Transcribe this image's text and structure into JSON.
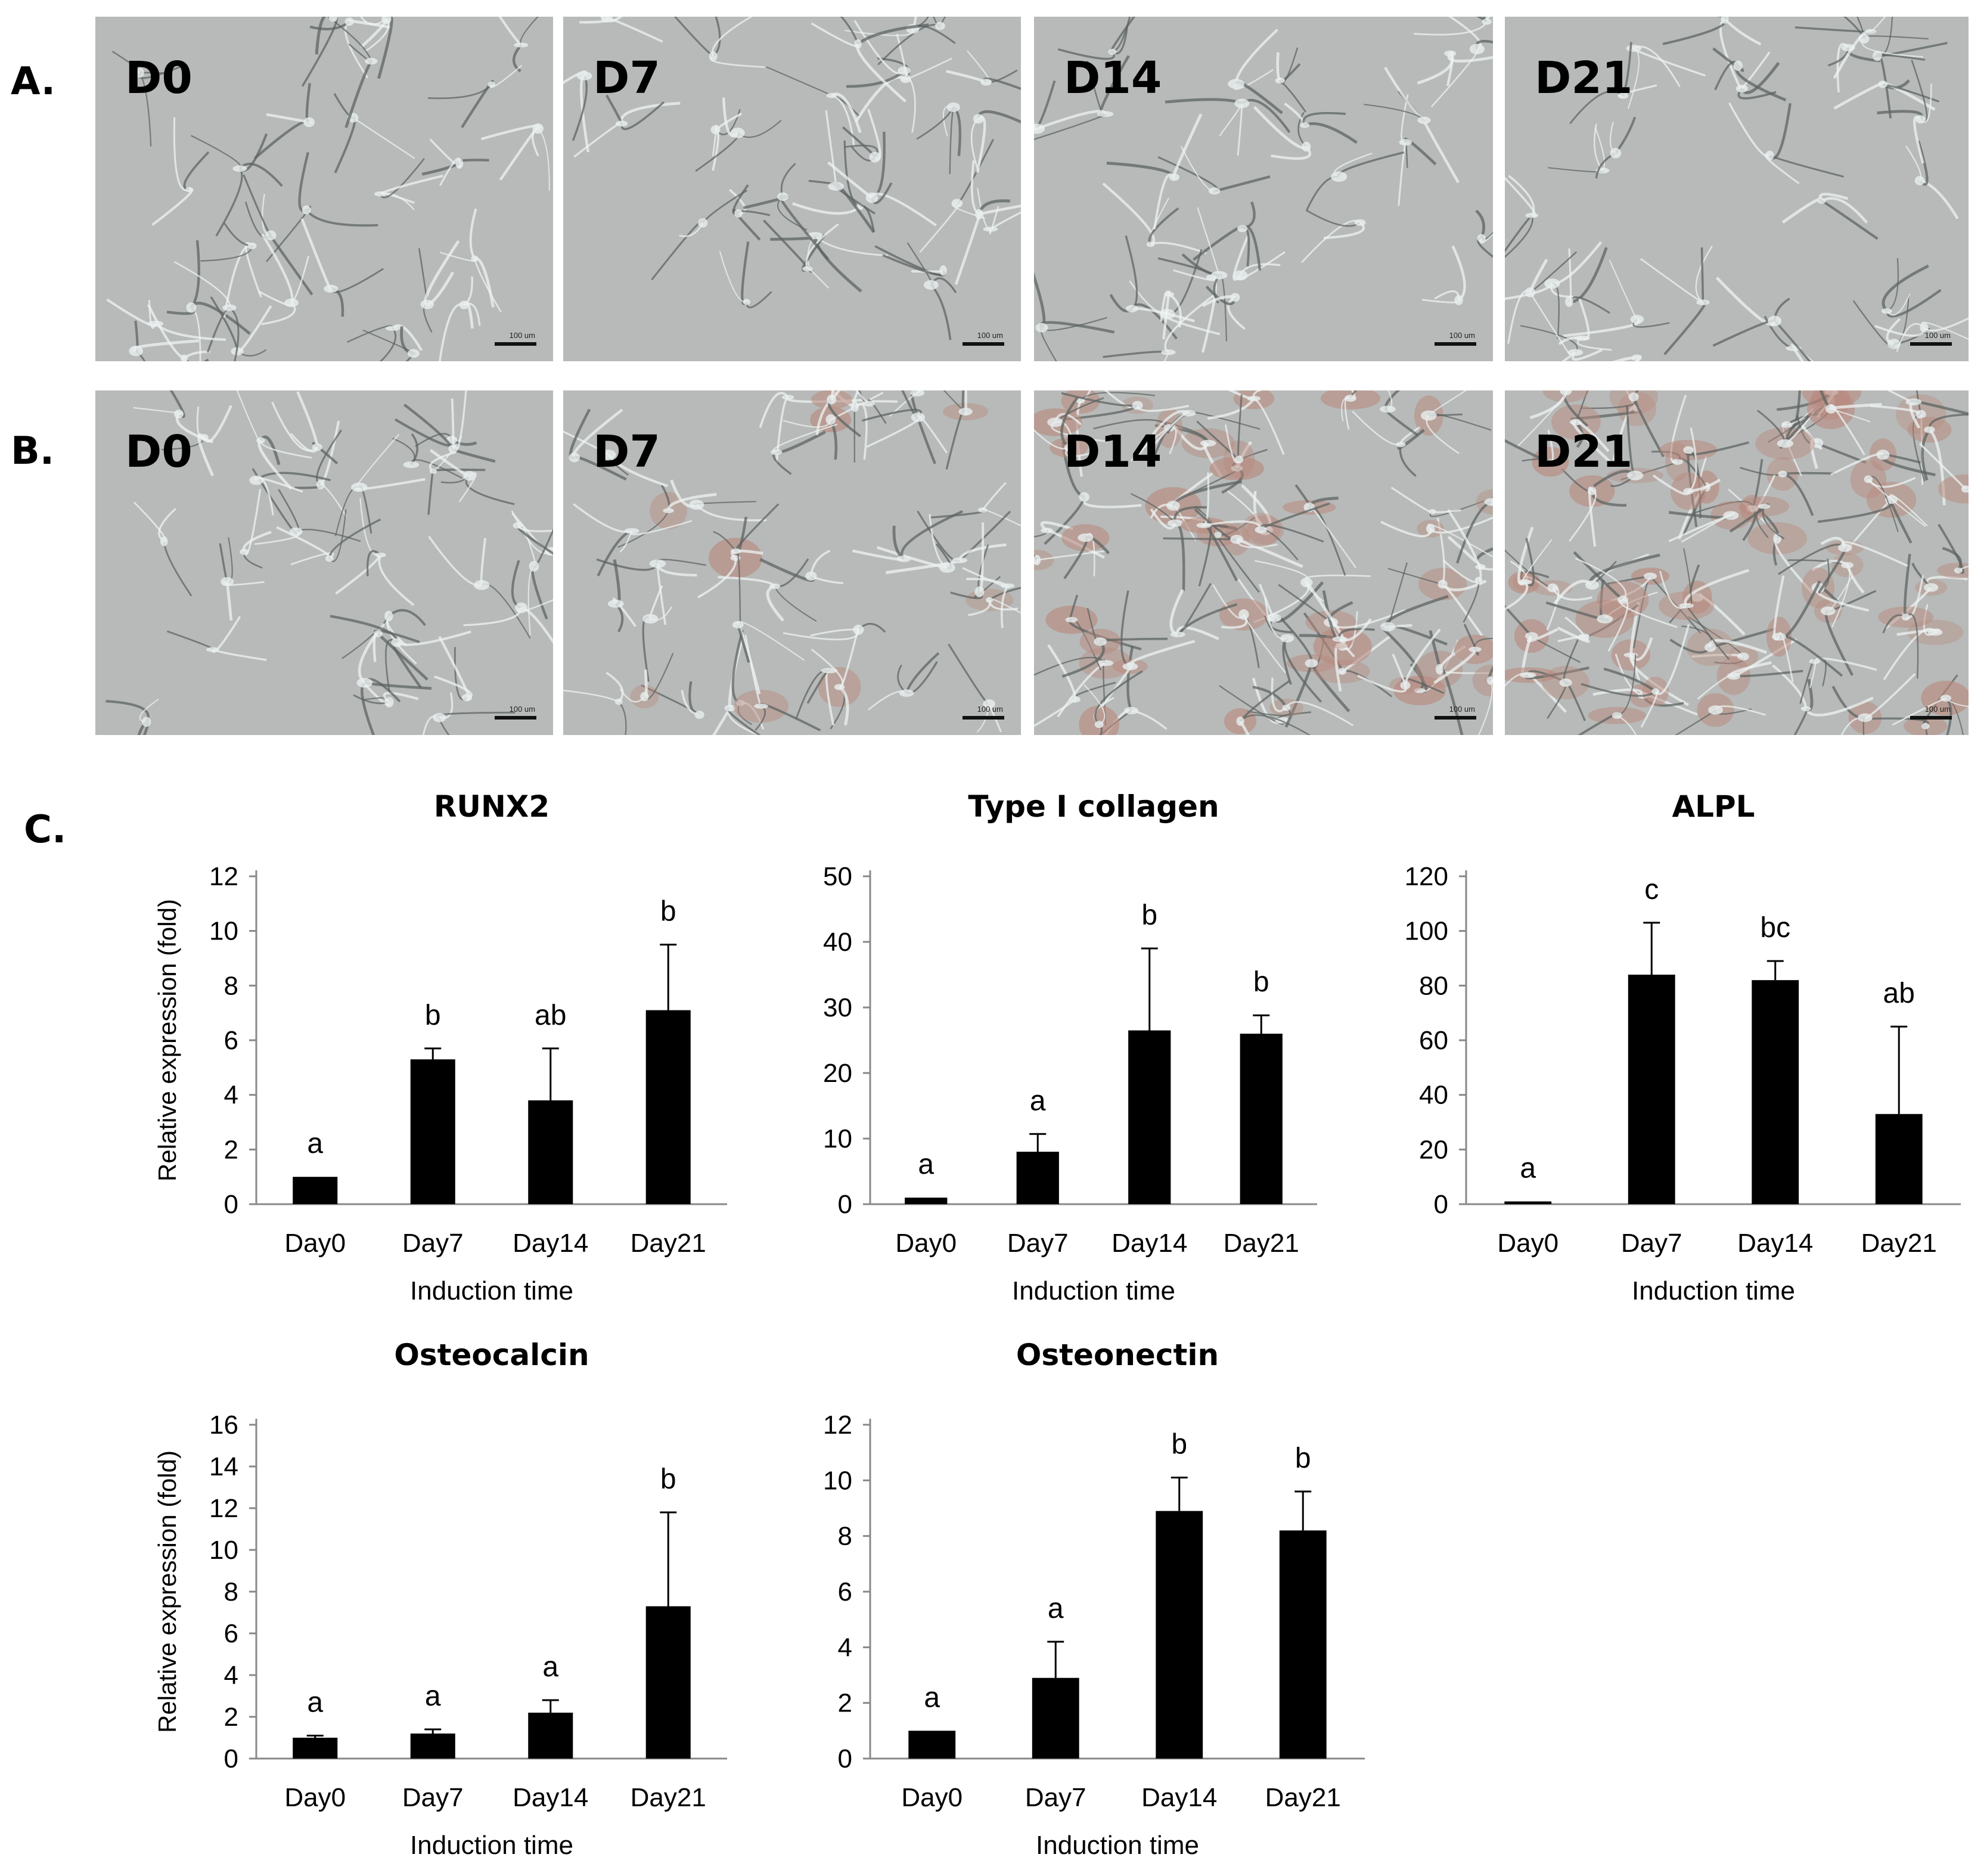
{
  "panels": {
    "A": {
      "label": "A.",
      "images": [
        {
          "label": "D0",
          "scale": "100 um",
          "stain": 0.0
        },
        {
          "label": "D7",
          "scale": "100 um",
          "stain": 0.0
        },
        {
          "label": "D14",
          "scale": "100 um",
          "stain": 0.0
        },
        {
          "label": "D21",
          "scale": "100 um",
          "stain": 0.0
        }
      ]
    },
    "B": {
      "label": "B.",
      "images": [
        {
          "label": "D0",
          "scale": "100 um",
          "stain": 0.05
        },
        {
          "label": "D7",
          "scale": "100 um",
          "stain": 0.25
        },
        {
          "label": "D14",
          "scale": "100 um",
          "stain": 0.7
        },
        {
          "label": "D21",
          "scale": "100 um",
          "stain": 0.85
        }
      ]
    },
    "C": {
      "label": "C."
    }
  },
  "colors": {
    "bar": "#000000",
    "axis": "#888888",
    "micro_bg": "#b7bab8"
  },
  "chart_data": [
    {
      "type": "bar",
      "title": "RUNX2",
      "ylabel": "Relative expression (fold)",
      "xlabel": "Induction time",
      "categories": [
        "Day0",
        "Day7",
        "Day14",
        "Day21"
      ],
      "values": [
        1,
        5.3,
        3.8,
        7.1
      ],
      "errors": [
        0,
        0.4,
        1.9,
        2.4
      ],
      "letters": [
        "a",
        "b",
        "ab",
        "b"
      ],
      "ylim": [
        0,
        12
      ],
      "yticks": [
        "0",
        "2",
        "4",
        "6",
        "8",
        "10",
        "12"
      ]
    },
    {
      "type": "bar",
      "title": "Type I collagen",
      "ylabel": "",
      "xlabel": "Induction time",
      "categories": [
        "Day0",
        "Day7",
        "Day14",
        "Day21"
      ],
      "values": [
        1,
        8,
        26.5,
        26
      ],
      "errors": [
        0,
        2.7,
        12.5,
        2.8
      ],
      "letters": [
        "a",
        "a",
        "b",
        "b"
      ],
      "ylim": [
        0,
        50
      ],
      "yticks": [
        "0",
        "10",
        "20",
        "30",
        "40",
        "50"
      ]
    },
    {
      "type": "bar",
      "title": "ALPL",
      "ylabel": "",
      "xlabel": "Induction time",
      "categories": [
        "Day0",
        "Day7",
        "Day14",
        "Day21"
      ],
      "values": [
        1,
        84,
        82,
        33
      ],
      "errors": [
        0,
        19,
        7,
        32
      ],
      "letters": [
        "a",
        "c",
        "bc",
        "ab"
      ],
      "ylim": [
        0,
        120
      ],
      "yticks": [
        "0",
        "20",
        "40",
        "60",
        "80",
        "100",
        "120"
      ]
    },
    {
      "type": "bar",
      "title": "Osteocalcin",
      "ylabel": "Relative expression (fold)",
      "xlabel": "Induction time",
      "categories": [
        "Day0",
        "Day7",
        "Day14",
        "Day21"
      ],
      "values": [
        1,
        1.2,
        2.2,
        7.3
      ],
      "errors": [
        0.1,
        0.2,
        0.6,
        4.5
      ],
      "letters": [
        "a",
        "a",
        "a",
        "b"
      ],
      "ylim": [
        0,
        16
      ],
      "yticks": [
        "0",
        "2",
        "4",
        "6",
        "8",
        "10",
        "12",
        "14",
        "16"
      ]
    },
    {
      "type": "bar",
      "title": "Osteonectin",
      "ylabel": "",
      "xlabel": "Induction time",
      "categories": [
        "Day0",
        "Day7",
        "Day14",
        "Day21"
      ],
      "values": [
        1,
        2.9,
        8.9,
        8.2
      ],
      "errors": [
        0,
        1.3,
        1.2,
        1.4
      ],
      "letters": [
        "a",
        "a",
        "b",
        "b"
      ],
      "ylim": [
        0,
        12
      ],
      "yticks": [
        "0",
        "2",
        "4",
        "6",
        "8",
        "10",
        "12"
      ]
    }
  ]
}
